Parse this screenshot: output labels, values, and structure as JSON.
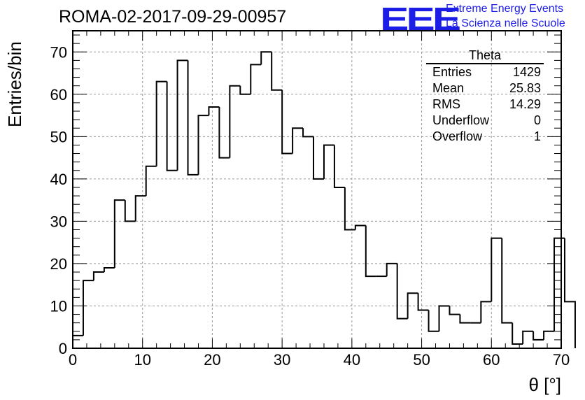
{
  "header": {
    "run_title": "ROMA-02-2017-09-29-00957",
    "logo_text": "EEE",
    "brand_line1": "Extreme Energy Events",
    "brand_line2": "La Scienza nelle Scuole"
  },
  "stats": {
    "name": "Theta",
    "rows": [
      {
        "label": "Entries",
        "value": "1429"
      },
      {
        "label": "Mean",
        "value": "25.83"
      },
      {
        "label": "RMS",
        "value": "14.29"
      },
      {
        "label": "Underflow",
        "value": "0"
      },
      {
        "label": "Overflow",
        "value": "1"
      }
    ]
  },
  "colors": {
    "accent": "#1d1de8",
    "line": "#000000",
    "grid": "#9a9a9a"
  },
  "chart_data": {
    "type": "bar",
    "style": "step-histogram",
    "xlabel": "θ [°]",
    "ylabel": "Entries/bin",
    "xlim": [
      0,
      70
    ],
    "ylim": [
      0,
      75
    ],
    "grid": true,
    "stats_box_position": "top-right",
    "bin_width": 1.5,
    "x_ticks": [
      0,
      10,
      20,
      30,
      40,
      50,
      60,
      70
    ],
    "y_ticks": [
      0,
      10,
      20,
      30,
      40,
      50,
      60,
      70
    ],
    "values": [
      3,
      16,
      18,
      19,
      35,
      30,
      36,
      43,
      63,
      42,
      68,
      41,
      55,
      57,
      45,
      62,
      60,
      67,
      70,
      61,
      46,
      52,
      50,
      40,
      48,
      38,
      28,
      29,
      17,
      17,
      20,
      7,
      13,
      9,
      4,
      10,
      8,
      6,
      6,
      11,
      26,
      6,
      1,
      4,
      2,
      4,
      26,
      11
    ]
  }
}
